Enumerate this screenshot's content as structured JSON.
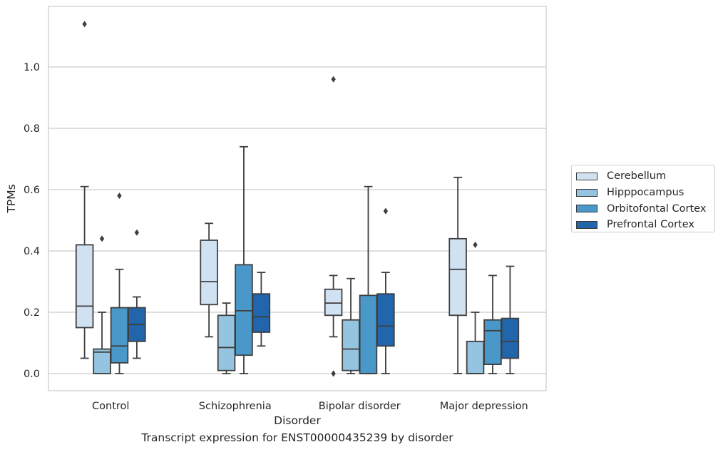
{
  "chart_data": {
    "type": "box",
    "title": "",
    "caption": "Transcript expression for ENST00000435239 by disorder",
    "xlabel": "Disorder",
    "ylabel": "TPMs",
    "ylim": [
      -0.055,
      1.2
    ],
    "yticks": [
      "0.0",
      "0.2",
      "0.4",
      "0.6",
      "0.8",
      "1.0"
    ],
    "grid": true,
    "legend_position": "right-center",
    "categories": [
      "Control",
      "Schizophrenia",
      "Bipolar disorder",
      "Major depression"
    ],
    "series": [
      {
        "name": "Cerebellum",
        "color": "#d0e1f2",
        "boxes": [
          {
            "whislo": 0.05,
            "q1": 0.15,
            "med": 0.22,
            "q3": 0.42,
            "whishi": 0.61,
            "fliers": [
              1.14
            ]
          },
          {
            "whislo": 0.12,
            "q1": 0.225,
            "med": 0.3,
            "q3": 0.435,
            "whishi": 0.49,
            "fliers": []
          },
          {
            "whislo": 0.12,
            "q1": 0.19,
            "med": 0.23,
            "q3": 0.275,
            "whishi": 0.32,
            "fliers": [
              0.96,
              0.0
            ]
          },
          {
            "whislo": 0.0,
            "q1": 0.19,
            "med": 0.34,
            "q3": 0.44,
            "whishi": 0.64,
            "fliers": []
          }
        ]
      },
      {
        "name": "Hipppocampus",
        "color": "#94c4df",
        "boxes": [
          {
            "whislo": 0.0,
            "q1": 0.0,
            "med": 0.07,
            "q3": 0.08,
            "whishi": 0.2,
            "fliers": [
              0.44
            ]
          },
          {
            "whislo": 0.0,
            "q1": 0.01,
            "med": 0.085,
            "q3": 0.19,
            "whishi": 0.23,
            "fliers": []
          },
          {
            "whislo": 0.0,
            "q1": 0.01,
            "med": 0.08,
            "q3": 0.175,
            "whishi": 0.31,
            "fliers": []
          },
          {
            "whislo": 0.0,
            "q1": 0.0,
            "med": 0.0,
            "q3": 0.105,
            "whishi": 0.2,
            "fliers": [
              0.42
            ]
          }
        ]
      },
      {
        "name": "Orbitofontal Cortex",
        "color": "#4a98c9",
        "boxes": [
          {
            "whislo": 0.0,
            "q1": 0.035,
            "med": 0.09,
            "q3": 0.215,
            "whishi": 0.34,
            "fliers": [
              0.58
            ]
          },
          {
            "whislo": 0.0,
            "q1": 0.06,
            "med": 0.205,
            "q3": 0.355,
            "whishi": 0.74,
            "fliers": []
          },
          {
            "whislo": 0.0,
            "q1": 0.0,
            "med": 0.0,
            "q3": 0.255,
            "whishi": 0.61,
            "fliers": []
          },
          {
            "whislo": 0.0,
            "q1": 0.03,
            "med": 0.14,
            "q3": 0.175,
            "whishi": 0.32,
            "fliers": []
          }
        ]
      },
      {
        "name": "Prefrontal Cortex",
        "color": "#2165ab",
        "boxes": [
          {
            "whislo": 0.05,
            "q1": 0.105,
            "med": 0.16,
            "q3": 0.215,
            "whishi": 0.25,
            "fliers": [
              0.46
            ]
          },
          {
            "whislo": 0.09,
            "q1": 0.135,
            "med": 0.185,
            "q3": 0.26,
            "whishi": 0.33,
            "fliers": []
          },
          {
            "whislo": 0.0,
            "q1": 0.09,
            "med": 0.155,
            "q3": 0.26,
            "whishi": 0.33,
            "fliers": [
              0.53
            ]
          },
          {
            "whislo": 0.0,
            "q1": 0.05,
            "med": 0.105,
            "q3": 0.18,
            "whishi": 0.35,
            "fliers": []
          }
        ]
      }
    ]
  }
}
